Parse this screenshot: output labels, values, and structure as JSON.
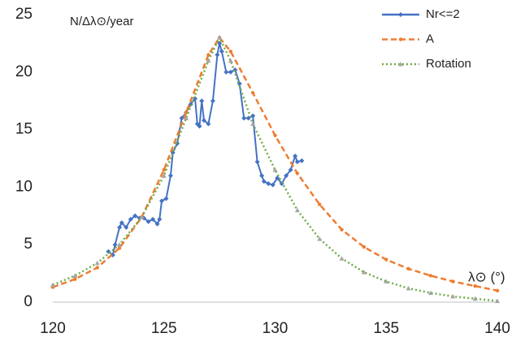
{
  "chart_data": {
    "type": "line",
    "y_label": "N/Δλ⊙/year",
    "x_label": "λ⊙ (°)",
    "xlim": [
      120,
      140
    ],
    "xticks": [
      120,
      125,
      130,
      135,
      140
    ],
    "ylim": [
      0,
      25
    ],
    "yticks": [
      0,
      5,
      10,
      15,
      20,
      25
    ],
    "grid": false,
    "legend": "top-right",
    "series": [
      {
        "name": "Nr<=2",
        "color": "#4472c4",
        "dash": "solid",
        "marker": "diamond",
        "x": [
          122.5,
          122.7,
          122.8,
          123.0,
          123.1,
          123.3,
          123.5,
          123.7,
          123.9,
          124.1,
          124.3,
          124.5,
          124.7,
          124.8,
          124.9,
          125.1,
          125.3,
          125.4,
          125.6,
          125.8,
          126.0,
          126.2,
          126.4,
          126.5,
          126.6,
          126.7,
          126.8,
          127.0,
          127.2,
          127.4,
          127.5,
          127.6,
          127.8,
          128.0,
          128.2,
          128.4,
          128.6,
          128.8,
          129.0,
          129.2,
          129.4,
          129.5,
          129.7,
          129.9,
          130.1,
          130.3,
          130.5,
          130.7,
          130.9,
          131.0,
          131.2
        ],
        "values": [
          4.4,
          4.1,
          5.0,
          6.5,
          6.9,
          6.5,
          7.2,
          7.5,
          7.3,
          7.3,
          7.0,
          7.2,
          6.8,
          7.2,
          8.8,
          9.0,
          11.0,
          13.0,
          13.8,
          16.0,
          16.5,
          17.2,
          17.7,
          15.5,
          15.3,
          17.5,
          15.8,
          15.5,
          17.5,
          21.5,
          22.5,
          21.8,
          20.0,
          20.0,
          20.2,
          19.0,
          16.0,
          16.0,
          16.2,
          12.2,
          11.0,
          10.5,
          10.3,
          10.2,
          10.8,
          10.3,
          11.0,
          11.5,
          12.7,
          12.2,
          12.3
        ]
      },
      {
        "name": "A",
        "color": "#ed7d31",
        "dash": "dashed",
        "marker": "circle",
        "x": [
          120,
          121,
          122,
          123,
          124,
          125,
          126,
          127,
          127.5,
          128,
          129,
          130,
          131,
          132,
          133,
          134,
          135,
          136,
          137,
          138,
          139,
          140
        ],
        "values": [
          1.3,
          2.0,
          3.0,
          4.7,
          7.4,
          11.5,
          16.5,
          21.5,
          23.0,
          21.8,
          18.2,
          14.5,
          11.2,
          8.5,
          6.3,
          4.8,
          3.7,
          2.9,
          2.3,
          1.8,
          1.4,
          1.0
        ]
      },
      {
        "name": "Rotation",
        "color": "#70ad47",
        "dash": "dotted",
        "marker": "triangle",
        "x": [
          120,
          121,
          122,
          123,
          124,
          125,
          126,
          127,
          127.5,
          128,
          129,
          130,
          131,
          132,
          133,
          134,
          135,
          136,
          137,
          138,
          139,
          140
        ],
        "values": [
          1.5,
          2.3,
          3.4,
          5.0,
          7.4,
          11.0,
          16.0,
          21.0,
          23.0,
          21.0,
          15.5,
          11.5,
          8.0,
          5.5,
          3.8,
          2.6,
          1.8,
          1.2,
          0.8,
          0.5,
          0.3,
          0.1
        ]
      }
    ]
  }
}
